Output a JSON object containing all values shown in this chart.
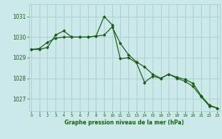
{
  "title": "Graphe pression niveau de la mer (hPa)",
  "bg_color": "#cce9e9",
  "grid_color": "#aad0d0",
  "line_color": "#1a5c1a",
  "marker_color": "#1a5c1a",
  "xlim": [
    -0.3,
    23.3
  ],
  "ylim": [
    1026.4,
    1031.6
  ],
  "yticks": [
    1027,
    1028,
    1029,
    1030,
    1031
  ],
  "xtick_labels": [
    "0",
    "1",
    "2",
    "3",
    "4",
    "5",
    "6",
    "7",
    "8",
    "9",
    "10",
    "11",
    "12",
    "13",
    "14",
    "15",
    "16",
    "17",
    "18",
    "19",
    "20",
    "21",
    "22",
    "23"
  ],
  "series1_x": [
    0,
    1,
    2,
    3,
    4,
    5,
    6,
    7,
    8,
    9,
    10,
    11,
    12,
    13,
    14,
    15,
    16,
    17,
    18,
    19,
    20,
    21,
    22,
    23
  ],
  "series1_y": [
    1029.4,
    1029.4,
    1029.5,
    1030.1,
    1030.3,
    1030.0,
    1030.0,
    1030.0,
    1030.05,
    1031.0,
    1030.6,
    1028.95,
    1029.0,
    1028.75,
    1027.8,
    1028.1,
    1028.0,
    1028.2,
    1028.0,
    1027.85,
    1027.6,
    1027.1,
    1026.65,
    1026.55
  ],
  "series2_x": [
    0,
    1,
    2,
    3,
    4,
    5,
    6,
    7,
    8,
    9,
    10,
    11,
    12,
    13,
    14,
    15,
    16,
    17,
    18,
    19,
    20,
    21,
    22,
    23
  ],
  "series2_y": [
    1029.4,
    1029.45,
    1029.75,
    1029.95,
    1030.0,
    1030.0,
    1030.0,
    1030.0,
    1030.05,
    1030.1,
    1030.5,
    1029.7,
    1029.15,
    1028.8,
    1028.55,
    1028.2,
    1028.0,
    1028.2,
    1028.05,
    1027.95,
    1027.75,
    1027.15,
    1026.7,
    1026.55
  ]
}
